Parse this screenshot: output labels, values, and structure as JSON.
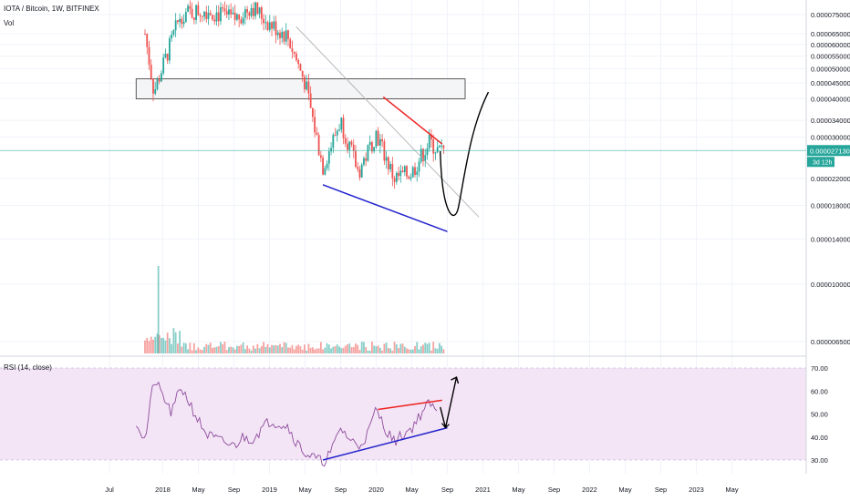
{
  "header": {
    "symbol_line": "IOTA / Bitcoin, 1W, BITFINEX",
    "volume_label": "Vol"
  },
  "rsi_panel": {
    "label": "RSI (14, close)"
  },
  "price_scale": {
    "labels": [
      "0.000075000",
      "0.000065000",
      "0.000060000",
      "0.000055000",
      "0.000050000",
      "0.000045000",
      "0.000040000",
      "0.000034000",
      "0.000030000",
      "0.000022000",
      "0.000018000",
      "0.000014000",
      "0.000010000",
      "0.0000065000"
    ],
    "current_price": "0.000027130",
    "countdown": "3d 12h"
  },
  "rsi_scale": {
    "labels": [
      "70.00",
      "60.00",
      "50.00",
      "40.00",
      "30.00"
    ]
  },
  "time_axis": {
    "labels": [
      "Jul",
      "2018",
      "May",
      "Sep",
      "2019",
      "May",
      "Sep",
      "2020",
      "May",
      "Sep",
      "2021",
      "May",
      "Sep",
      "2022",
      "May",
      "Sep",
      "2023",
      "May"
    ]
  },
  "colors": {
    "bull": "#26a69a",
    "bear": "#ef5350",
    "rsi_line": "#8e4c9e",
    "rsi_band": "#f3e5f5",
    "price_line": "#26a69a",
    "support_line": "#2222cc",
    "resistance_line": "#ee2222",
    "projection": "#000000"
  },
  "chart_data": [
    {
      "type": "candlestick",
      "title": "IOTA / Bitcoin, 1W, BITFINEX",
      "x_range": [
        "2017-06",
        "2023-05"
      ],
      "y_scale": "log",
      "y_range": [
        5.5e-06,
        8.5e-05
      ],
      "current_price": 2.713e-05,
      "annotations": {
        "zone": {
          "from": "2017-11",
          "to": "2020-09",
          "y_low": 4.05e-05,
          "y_high": 4.7e-05
        },
        "descending_trendline": {
          "from": [
            "2019-04",
            6.85e-05
          ],
          "to": [
            "2020-11",
            1.65e-05
          ]
        },
        "resistance_line": {
          "from": [
            "2020-02",
            4.05e-05
          ],
          "to": [
            "2020-08",
            2.85e-05
          ]
        },
        "support_line": {
          "from": [
            "2019-07",
            2.1e-05
          ],
          "to": [
            "2020-09",
            1.48e-05
          ]
        },
        "projection": "dip to about 0.000017 in Sep 2020, then rally to about 0.000042 by early 2021"
      },
      "closes_approx": [
        {
          "x": "2017-11",
          "y": 6.5e-05
        },
        {
          "x": "2017-12",
          "y": 4.2e-05
        },
        {
          "x": "2018-03",
          "y": 7.5e-05
        },
        {
          "x": "2018-06",
          "y": 7.8e-05
        },
        {
          "x": "2018-09",
          "y": 7.2e-05
        },
        {
          "x": "2018-11",
          "y": 8e-05
        },
        {
          "x": "2019-01",
          "y": 7e-05
        },
        {
          "x": "2019-03",
          "y": 6.4e-05
        },
        {
          "x": "2019-05",
          "y": 4.5e-05
        },
        {
          "x": "2019-07",
          "y": 2.4e-05
        },
        {
          "x": "2019-09",
          "y": 3.4e-05
        },
        {
          "x": "2019-11",
          "y": 2.3e-05
        },
        {
          "x": "2020-01",
          "y": 3.1e-05
        },
        {
          "x": "2020-03",
          "y": 2.2e-05
        },
        {
          "x": "2020-05",
          "y": 2.3e-05
        },
        {
          "x": "2020-07",
          "y": 2.9e-05
        },
        {
          "x": "2020-08",
          "y": 2.7e-05
        }
      ],
      "volume": "small bars along the bottom of the price panel, largest spike about Dec 2017"
    },
    {
      "type": "line",
      "title": "RSI (14, close)",
      "y_range": [
        25,
        72
      ],
      "band": [
        30,
        70
      ],
      "series": [
        {
          "points": [
            {
              "x": "2017-10",
              "y": 47
            },
            {
              "x": "2017-11",
              "y": 38
            },
            {
              "x": "2017-12",
              "y": 65
            },
            {
              "x": "2018-01",
              "y": 58
            },
            {
              "x": "2018-02",
              "y": 50
            },
            {
              "x": "2018-03",
              "y": 62
            },
            {
              "x": "2018-04",
              "y": 55
            },
            {
              "x": "2018-05",
              "y": 47
            },
            {
              "x": "2018-06",
              "y": 41
            },
            {
              "x": "2018-07",
              "y": 39
            },
            {
              "x": "2018-09",
              "y": 36
            },
            {
              "x": "2018-10",
              "y": 40
            },
            {
              "x": "2018-11",
              "y": 39
            },
            {
              "x": "2019-01",
              "y": 47
            },
            {
              "x": "2019-03",
              "y": 45
            },
            {
              "x": "2019-04",
              "y": 38
            },
            {
              "x": "2019-05",
              "y": 33
            },
            {
              "x": "2019-06",
              "y": 31
            },
            {
              "x": "2019-07",
              "y": 29
            },
            {
              "x": "2019-08",
              "y": 34
            },
            {
              "x": "2019-09",
              "y": 44
            },
            {
              "x": "2019-10",
              "y": 39
            },
            {
              "x": "2019-11",
              "y": 36
            },
            {
              "x": "2019-12",
              "y": 41
            },
            {
              "x": "2020-01",
              "y": 52
            },
            {
              "x": "2020-02",
              "y": 44
            },
            {
              "x": "2020-03",
              "y": 38
            },
            {
              "x": "2020-04",
              "y": 41
            },
            {
              "x": "2020-05",
              "y": 44
            },
            {
              "x": "2020-06",
              "y": 50
            },
            {
              "x": "2020-07",
              "y": 55
            },
            {
              "x": "2020-08",
              "y": 49
            }
          ]
        }
      ],
      "annotations": {
        "support_line": {
          "from": [
            "2019-07",
            30
          ],
          "to": [
            "2020-09",
            44
          ]
        },
        "resistance_line": {
          "from": [
            "2020-01",
            52
          ],
          "to": [
            "2020-08",
            56
          ]
        },
        "projection": "dip to about 44 then up to about 66"
      }
    }
  ]
}
